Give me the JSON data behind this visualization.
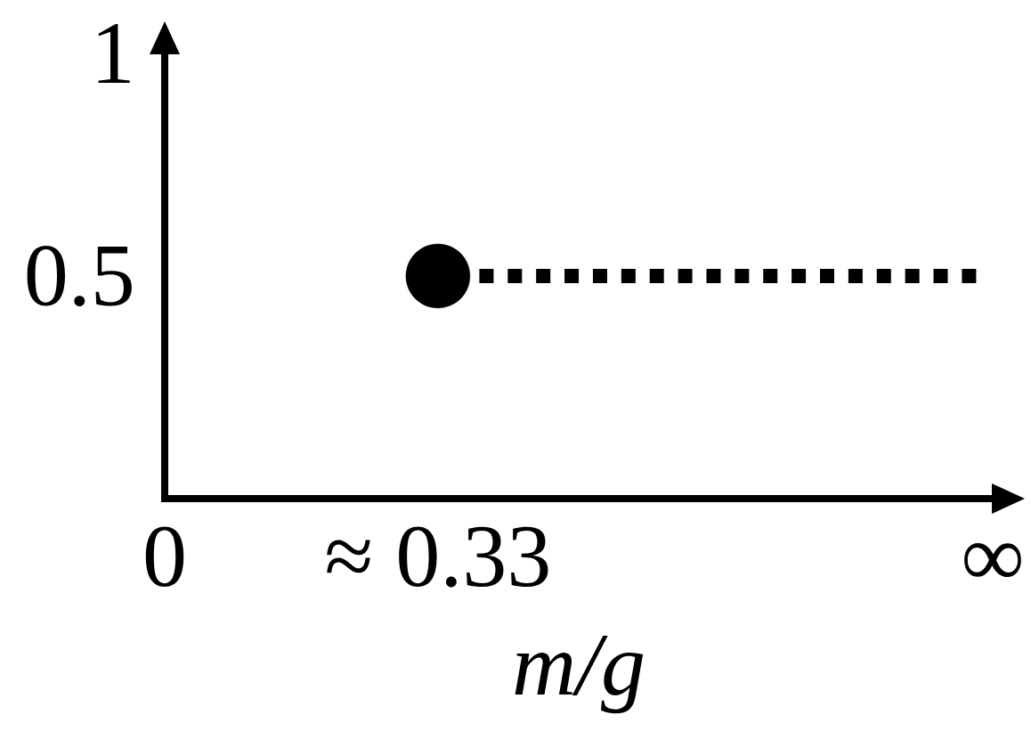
{
  "chart_data": {
    "type": "scatter",
    "xlabel": "m/g",
    "xlim": [
      0,
      1
    ],
    "ylim": [
      0,
      1
    ],
    "xticks": [
      0,
      {
        "value": 0.33,
        "label": "≈ 0.33"
      },
      {
        "value": 1,
        "label": "∞"
      }
    ],
    "yticks": [
      0.5,
      1
    ],
    "series": [
      {
        "type": "line",
        "color": "#000000",
        "x": [
          0.38,
          0.98
        ],
        "values": [
          0.5,
          0.5
        ],
        "line_style": "dotted",
        "marker": "none"
      },
      {
        "color": "#000000",
        "x": [
          0.33
        ],
        "values": [
          0.5
        ],
        "marker": "circle"
      }
    ]
  }
}
